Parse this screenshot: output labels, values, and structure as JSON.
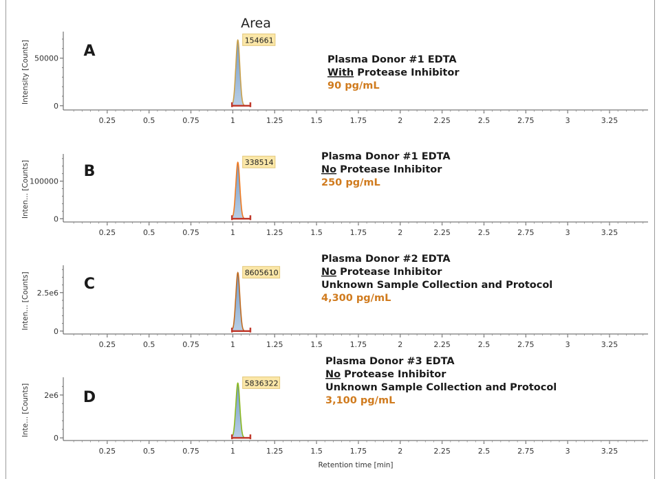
{
  "header": {
    "area_label": "Area"
  },
  "chart_data": {
    "type": "line",
    "xlabel": "Retention time [min]",
    "xlim": [
      0.0,
      3.48
    ],
    "x_ticks": [
      0.25,
      0.5,
      0.75,
      1,
      1.25,
      1.5,
      1.75,
      2,
      2.25,
      2.5,
      2.75,
      3,
      3.25
    ],
    "x_tick_labels": [
      "0.25",
      "0.5",
      "0.75",
      "1",
      "1.25",
      "1.5",
      "1.75",
      "2",
      "2.25",
      "2.5",
      "2.75",
      "3",
      "3.25"
    ],
    "peak_apex_rt": 1.03,
    "integration_window": [
      1.0,
      1.1
    ],
    "panels": [
      {
        "letter": "A",
        "ylabel": "Intensity [Counts]",
        "ylim": [
          -3000,
          75000
        ],
        "y_ticks": [
          0,
          50000
        ],
        "y_tick_labels": [
          "0",
          "50000"
        ],
        "peak_height": 69000,
        "area": "154661",
        "trace_color": "#3a3a3a",
        "peak_color": "#c9a04a",
        "annotation": {
          "line1": "Plasma Donor #1 EDTA",
          "line2_underlined": "With",
          "line2_rest": " Protease Inhibitor",
          "line3": "",
          "concentration": "90 pg/mL"
        }
      },
      {
        "letter": "B",
        "ylabel": "Inten... [Counts]",
        "ylim": [
          -5000,
          165000
        ],
        "y_ticks": [
          0,
          100000
        ],
        "y_tick_labels": [
          "0",
          "100000"
        ],
        "peak_height": 150000,
        "area": "338514",
        "trace_color": "#d9534f",
        "peak_color": "#f07a20",
        "annotation": {
          "line1": "Plasma Donor #1 EDTA",
          "line2_underlined": "No",
          "line2_rest": " Protease Inhibitor",
          "line3": "",
          "concentration": "250 pg/mL"
        }
      },
      {
        "letter": "C",
        "ylabel": "Inten... [Counts]",
        "ylim": [
          -100000,
          4100000
        ],
        "y_ticks": [
          0,
          2500000
        ],
        "y_tick_labels": [
          "0",
          "2.5e6"
        ],
        "peak_height": 3800000,
        "area": "8605610",
        "trace_color": "#2e3f8f",
        "peak_color": "#c06a1e",
        "annotation": {
          "line1": "Plasma Donor #2 EDTA",
          "line2_underlined": "No",
          "line2_rest": " Protease Inhibitor",
          "line3": "Unknown Sample Collection  and Protocol",
          "concentration": "4,300 pg/mL"
        }
      },
      {
        "letter": "D",
        "ylabel": "Inte... [Counts]",
        "ylim": [
          -60000,
          2700000
        ],
        "y_ticks": [
          0,
          2000000
        ],
        "y_tick_labels": [
          "0",
          "2e6"
        ],
        "peak_height": 2560000,
        "area": "5836322",
        "trace_color": "#4aa04a",
        "peak_color": "#8ab820",
        "annotation": {
          "line1": "Plasma Donor #3 EDTA",
          "line2_underlined": "No",
          "line2_rest": " Protease Inhibitor",
          "line3": "Unknown Sample Collection and Protocol",
          "concentration": "3,100 pg/mL"
        }
      }
    ]
  }
}
